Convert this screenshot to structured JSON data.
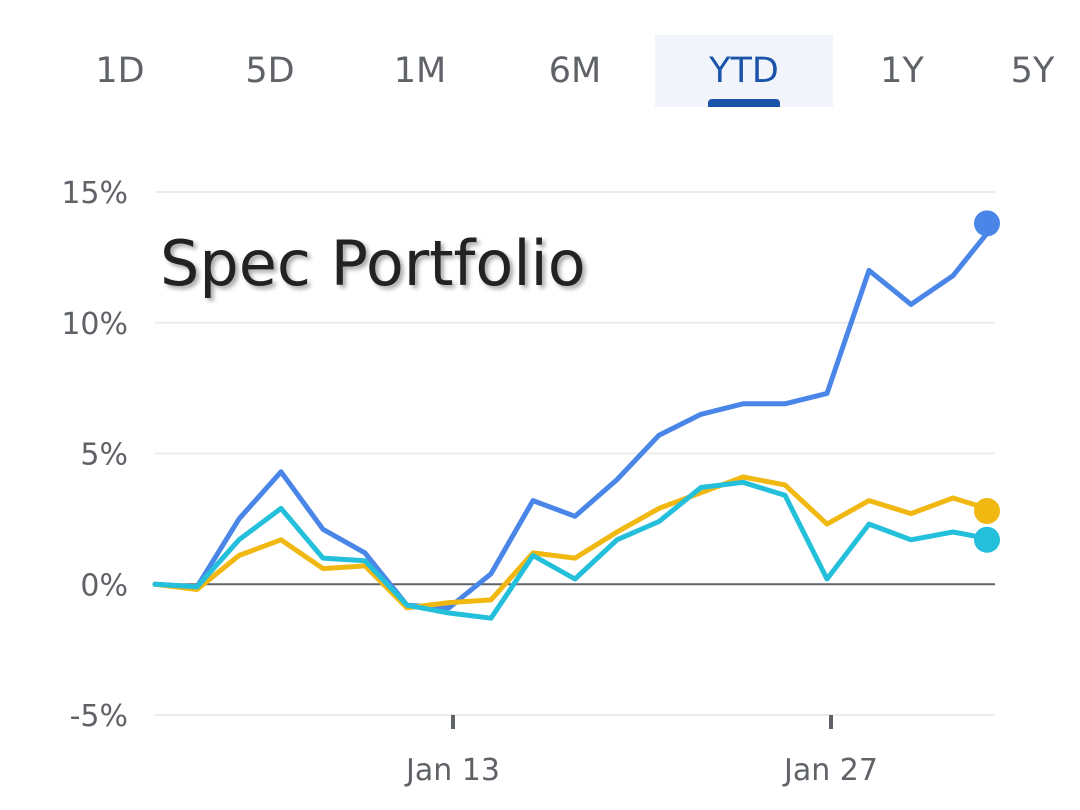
{
  "tabs": [
    {
      "label": "1D",
      "active": false
    },
    {
      "label": "5D",
      "active": false
    },
    {
      "label": "1M",
      "active": false
    },
    {
      "label": "6M",
      "active": false
    },
    {
      "label": "YTD",
      "active": true
    },
    {
      "label": "1Y",
      "active": false
    },
    {
      "label": "5Y",
      "active": false
    }
  ],
  "chart_data": {
    "type": "line",
    "title": "Spec Portfolio",
    "x_tick_labels": [
      "Jan 13",
      "Jan 27"
    ],
    "x_tick_positions": [
      7,
      16
    ],
    "y_ticks": [
      15,
      10,
      5,
      0,
      -5
    ],
    "y_tick_labels": [
      "15%",
      "10%",
      "5%",
      "0%",
      "-5%"
    ],
    "ylim": [
      -5,
      15
    ],
    "x_count": 21,
    "grid": true,
    "colors": {
      "blue": "#4a86e8",
      "gold": "#f1b812",
      "cyan": "#24bfdb",
      "zero_line": "#5f6368",
      "grid": "#ececec"
    },
    "series": [
      {
        "color_key": "blue",
        "values": [
          0,
          -0.1,
          2.5,
          4.3,
          2.1,
          1.2,
          -0.8,
          -0.9,
          0.4,
          3.2,
          2.6,
          4.0,
          5.7,
          6.5,
          6.9,
          6.9,
          7.3,
          12.0,
          10.7,
          11.8,
          13.8
        ]
      },
      {
        "color_key": "gold",
        "values": [
          0,
          -0.2,
          1.1,
          1.7,
          0.6,
          0.7,
          -0.9,
          -0.7,
          -0.6,
          1.2,
          1.0,
          2.0,
          2.9,
          3.5,
          4.1,
          3.8,
          2.3,
          3.2,
          2.7,
          3.3,
          2.8
        ]
      },
      {
        "color_key": "cyan",
        "values": [
          0,
          -0.1,
          1.7,
          2.9,
          1.0,
          0.9,
          -0.8,
          -1.1,
          -1.3,
          1.1,
          0.2,
          1.7,
          2.4,
          3.7,
          3.9,
          3.4,
          0.2,
          2.3,
          1.7,
          2.0,
          1.7
        ]
      }
    ]
  }
}
